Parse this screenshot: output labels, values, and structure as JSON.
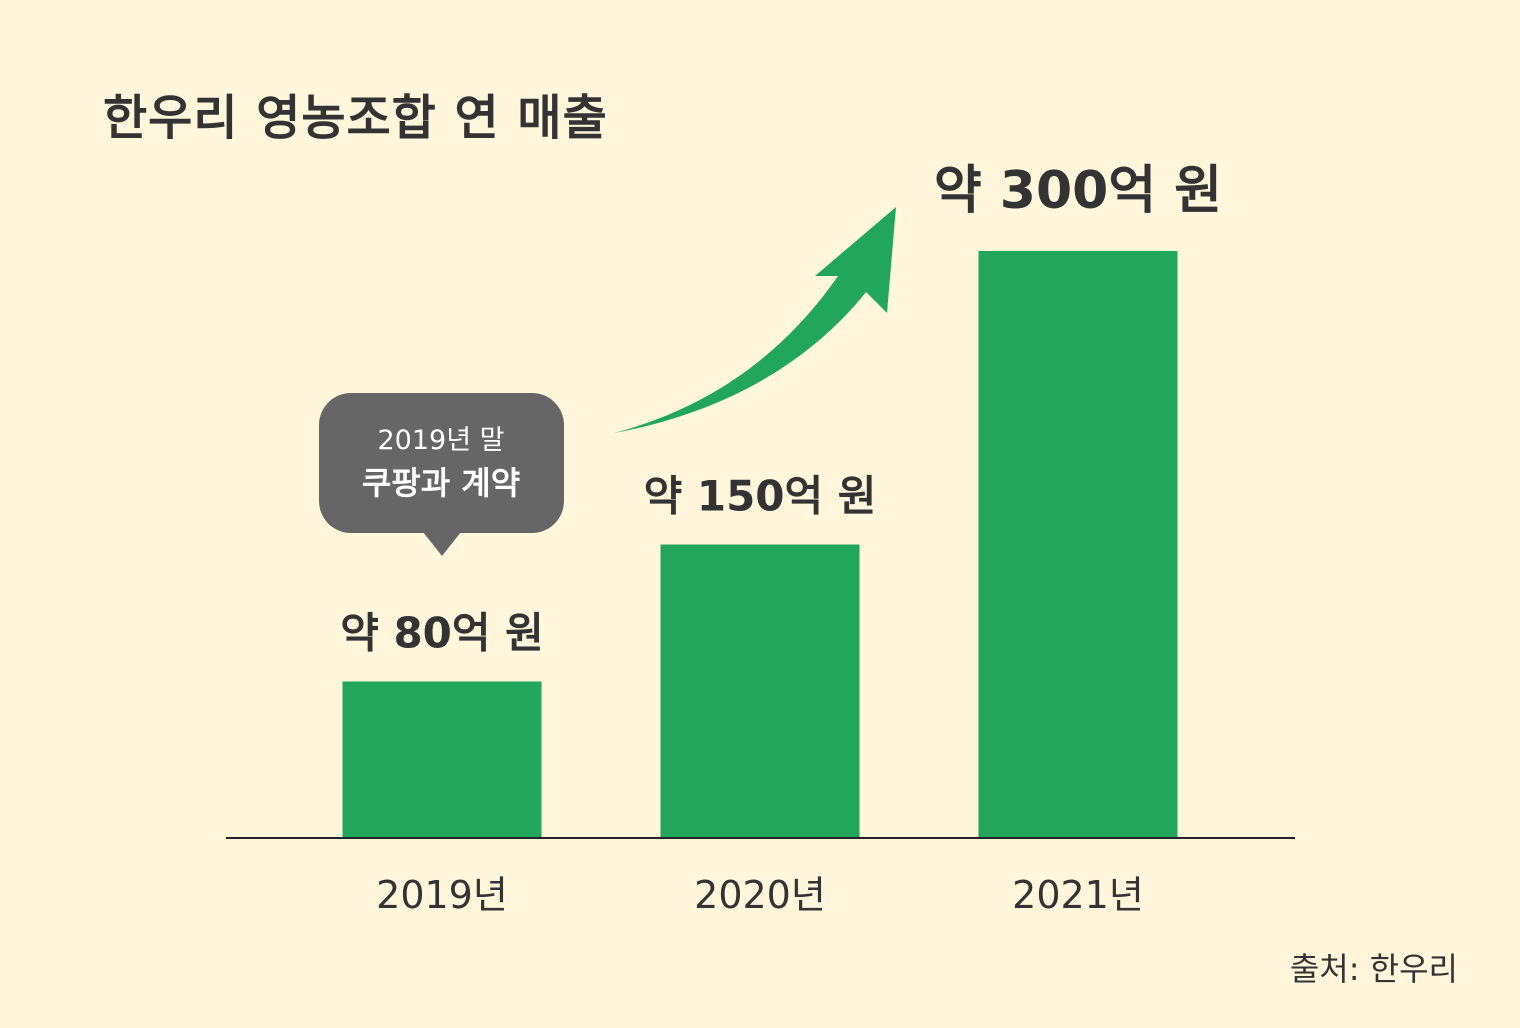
{
  "chart_data": {
    "type": "bar",
    "title": "한우리 영농조합 연 매출",
    "categories": [
      "2019년",
      "2020년",
      "2021년"
    ],
    "values": [
      80,
      150,
      300
    ],
    "value_labels": [
      "약 80억 원",
      "약 150억 원",
      "약 300억 원"
    ],
    "unit": "억 원",
    "ylim": [
      0,
      300
    ],
    "xlabel": "",
    "ylabel": "",
    "grid": false,
    "bar_color": "#21A65B",
    "annotation": {
      "category": "2019년",
      "line1": "2019년 말",
      "line2": "쿠팡과 계약",
      "bubble_color": "#666666"
    },
    "trend_arrow_color": "#21A65B"
  },
  "source": "출처: 한우리"
}
